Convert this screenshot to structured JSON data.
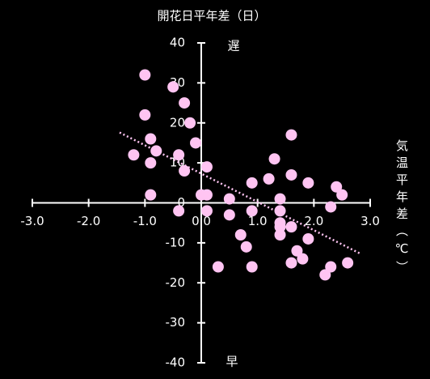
{
  "chart_data": {
    "type": "scatter",
    "title": "開花日平年差（日）",
    "x_label": "気温平年差（℃）",
    "top_label": "遅",
    "bottom_label": "早",
    "x": [
      -1.0,
      -0.5,
      -0.3,
      -1.0,
      -0.2,
      -0.9,
      -0.1,
      -0.8,
      -1.2,
      -0.4,
      -0.9,
      0.1,
      -0.3,
      -0.9,
      0.1,
      0.0,
      -0.4,
      0.1,
      0.5,
      0.5,
      0.9,
      0.9,
      0.7,
      0.8,
      0.3,
      0.9,
      1.3,
      1.2,
      1.6,
      1.6,
      1.4,
      1.4,
      1.4,
      1.4,
      1.4,
      1.6,
      1.7,
      1.8,
      1.6,
      1.9,
      1.9,
      2.3,
      2.4,
      2.5,
      2.3,
      2.2,
      2.6
    ],
    "y": [
      32,
      29,
      25,
      22,
      20,
      16,
      15,
      13,
      12,
      12,
      10,
      9,
      8,
      2,
      2,
      2,
      -2,
      -2,
      1,
      -3,
      5,
      -2,
      -8,
      -11,
      -16,
      -16,
      11,
      6,
      17,
      7,
      1,
      -2,
      -5,
      -6,
      -8,
      -6,
      -12,
      -14,
      -15,
      -9,
      5,
      -1,
      4,
      2,
      -16,
      -18,
      -15
    ],
    "color": "#ffc4f2",
    "trendline": {
      "x": [
        -1.45,
        2.84
      ],
      "y": [
        17.6,
        -12.8
      ],
      "color": "#ffc4f2"
    },
    "xlim": [
      -3,
      3
    ],
    "ylim": [
      -40,
      40
    ],
    "xticks": [
      {
        "value": -3,
        "label": "-3.0"
      },
      {
        "value": -2,
        "label": "-2.0"
      },
      {
        "value": -1,
        "label": "-1.0"
      },
      {
        "value": 0,
        "label": "0.0"
      },
      {
        "value": 1,
        "label": "1.0"
      },
      {
        "value": 2,
        "label": "2.0"
      },
      {
        "value": 3,
        "label": "3.0"
      }
    ],
    "yticks": [
      40,
      30,
      20,
      10,
      0,
      -10,
      -20,
      -30,
      -40
    ]
  }
}
